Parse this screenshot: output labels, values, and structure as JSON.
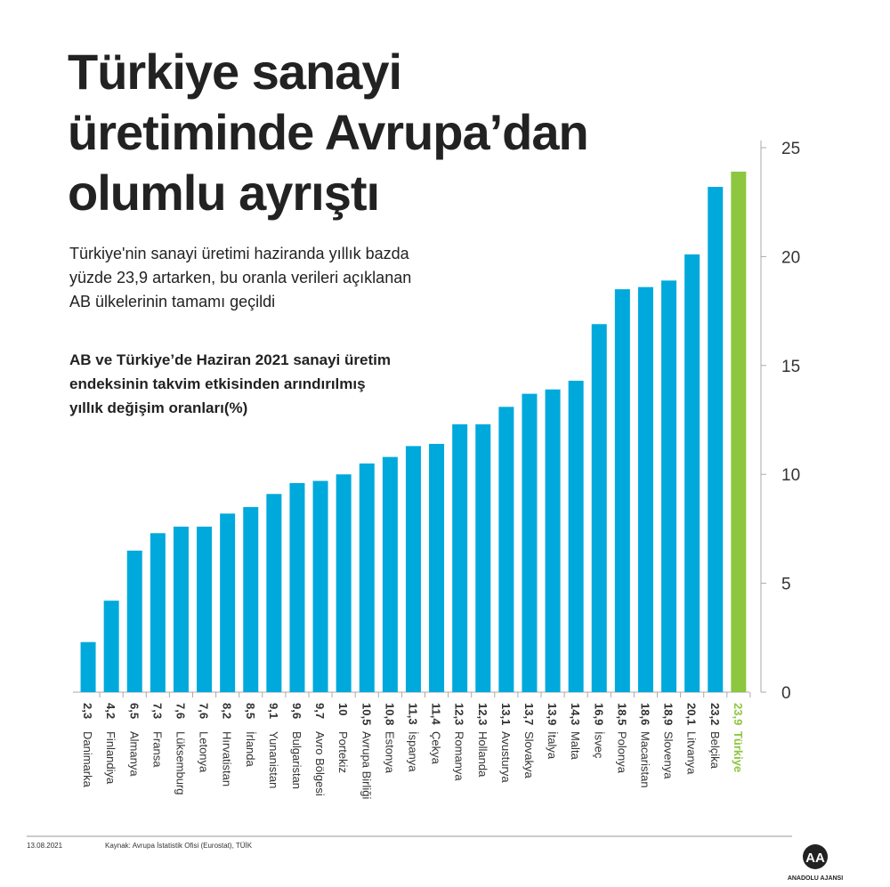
{
  "chart_data": {
    "type": "bar",
    "title": [
      "Türkiye sanayi",
      "üretiminde Avrupa’dan",
      "olumlu ayrıştı"
    ],
    "subtitle": [
      "Türkiye'nin sanayi üretimi haziranda yıllık bazda",
      "yüzde 23,9 artarken, bu oranla verileri açıklanan",
      "AB ülkelerinin tamamı geçildi"
    ],
    "chart_label": [
      "AB ve Türkiye’de Haziran 2021 sanayi üretim",
      "endeksinin takvim etkisinden arındırılmış",
      "yıllık değişim oranları(%)"
    ],
    "categories": [
      "Danimarka",
      "Finlandiya",
      "Almanya",
      "Fransa",
      "Lüksemburg",
      "Letonya",
      "Hırvatistan",
      "İrlanda",
      "Yunanistan",
      "Bulgaristan",
      "Avro Bölgesi",
      "Portekiz",
      "Avrupa Birliği",
      "Estonya",
      "İspanya",
      "Çekya",
      "Romanya",
      "Hollanda",
      "Avusturya",
      "Slovakya",
      "İtalya",
      "Malta",
      "İsveç",
      "Polonya",
      "Macaristan",
      "Slovenya",
      "Litvanya",
      "Belçika",
      "Türkiye"
    ],
    "values": [
      2.3,
      4.2,
      6.5,
      7.3,
      7.6,
      7.6,
      8.2,
      8.5,
      9.1,
      9.6,
      9.7,
      10,
      10.5,
      10.8,
      11.3,
      11.4,
      12.3,
      12.3,
      13.1,
      13.7,
      13.9,
      14.3,
      16.9,
      18.5,
      18.6,
      18.9,
      20.1,
      23.2,
      23.9
    ],
    "value_labels": [
      "2,3",
      "4,2",
      "6,5",
      "7,3",
      "7,6",
      "7,6",
      "8,2",
      "8,5",
      "9,1",
      "9,6",
      "9,7",
      "10",
      "10,5",
      "10,8",
      "11,3",
      "11,4",
      "12,3",
      "12,3",
      "13,1",
      "13,7",
      "13,9",
      "14,3",
      "16,9",
      "18,5",
      "18,6",
      "18,9",
      "20,1",
      "23,2",
      "23,9"
    ],
    "colors": [
      "#00a9dc",
      "#00a9dc",
      "#00a9dc",
      "#00a9dc",
      "#00a9dc",
      "#00a9dc",
      "#00a9dc",
      "#00a9dc",
      "#00a9dc",
      "#00a9dc",
      "#00a9dc",
      "#00a9dc",
      "#00a9dc",
      "#00a9dc",
      "#00a9dc",
      "#00a9dc",
      "#00a9dc",
      "#00a9dc",
      "#00a9dc",
      "#00a9dc",
      "#00a9dc",
      "#00a9dc",
      "#00a9dc",
      "#00a9dc",
      "#00a9dc",
      "#00a9dc",
      "#00a9dc",
      "#00a9dc",
      "#8dc63f"
    ],
    "ylim": [
      0,
      25
    ],
    "yticks": [
      0,
      5,
      10,
      15,
      20,
      25
    ]
  },
  "footer": {
    "date": "13.08.2021",
    "source": "Kaynak: Avrupa İstatistik Ofisi (Eurostat), TÜİK",
    "logo": "AA",
    "agency": "ANADOLU AJANSI"
  }
}
